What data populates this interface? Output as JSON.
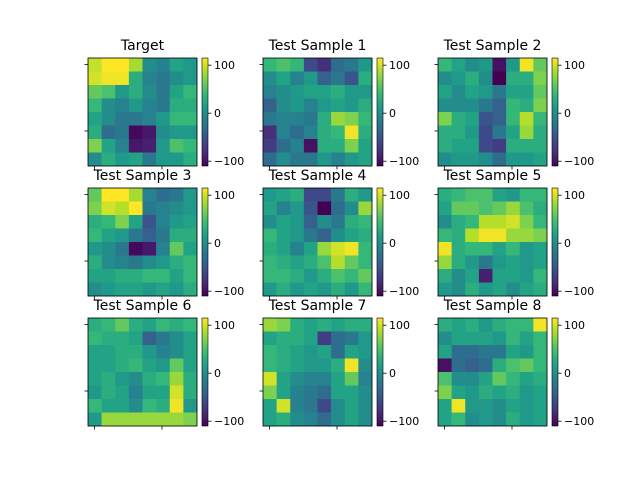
{
  "chart_data": [
    {
      "type": "heatmap",
      "title": "Target",
      "colorbar_ticks": [
        "100",
        "0",
        "−100"
      ],
      "vlim": [
        -110,
        115
      ],
      "colormap": "viridis",
      "values": [
        [
          95,
          115,
          115,
          85,
          0,
          -10,
          20,
          10
        ],
        [
          100,
          110,
          110,
          30,
          -10,
          -20,
          0,
          10
        ],
        [
          60,
          50,
          10,
          30,
          0,
          -20,
          20,
          40
        ],
        [
          40,
          0,
          -10,
          10,
          -10,
          -20,
          30,
          30
        ],
        [
          20,
          0,
          -20,
          -20,
          -10,
          10,
          40,
          40
        ],
        [
          30,
          -30,
          -20,
          -105,
          -95,
          0,
          10,
          10
        ],
        [
          70,
          20,
          -10,
          -95,
          -90,
          10,
          50,
          40
        ],
        [
          0,
          30,
          10,
          20,
          -20,
          10,
          10,
          30
        ]
      ]
    },
    {
      "type": "heatmap",
      "title": "Test Sample 1",
      "colorbar_ticks": [
        "100",
        "0",
        "−100"
      ],
      "vlim": [
        -110,
        115
      ],
      "colormap": "viridis",
      "values": [
        [
          40,
          50,
          40,
          -60,
          -80,
          -30,
          -20,
          10
        ],
        [
          0,
          20,
          -10,
          10,
          -40,
          -20,
          -50,
          30
        ],
        [
          -10,
          0,
          10,
          20,
          20,
          30,
          10,
          10
        ],
        [
          -40,
          0,
          10,
          -10,
          10,
          20,
          10,
          30
        ],
        [
          -20,
          -10,
          -10,
          -20,
          30,
          80,
          70,
          40
        ],
        [
          -80,
          -10,
          -30,
          -10,
          30,
          40,
          110,
          30
        ],
        [
          -70,
          -30,
          -10,
          -100,
          30,
          30,
          70,
          20
        ],
        [
          -30,
          0,
          -20,
          -20,
          10,
          -10,
          10,
          20
        ]
      ]
    },
    {
      "type": "heatmap",
      "title": "Test Sample 2",
      "colorbar_ticks": [
        "100",
        "0",
        "−100"
      ],
      "vlim": [
        -110,
        115
      ],
      "colormap": "viridis",
      "values": [
        [
          40,
          20,
          0,
          10,
          -100,
          10,
          110,
          60
        ],
        [
          0,
          10,
          30,
          0,
          -110,
          30,
          30,
          70
        ],
        [
          20,
          0,
          20,
          10,
          -20,
          20,
          20,
          60
        ],
        [
          0,
          0,
          0,
          -20,
          -40,
          40,
          30,
          70
        ],
        [
          70,
          30,
          20,
          -50,
          -40,
          40,
          90,
          40
        ],
        [
          30,
          30,
          10,
          -60,
          -20,
          20,
          80,
          30
        ],
        [
          30,
          20,
          20,
          -60,
          -70,
          30,
          30,
          30
        ],
        [
          0,
          10,
          10,
          0,
          -30,
          10,
          10,
          20
        ]
      ]
    },
    {
      "type": "heatmap",
      "title": "Test Sample 3",
      "colorbar_ticks": [
        "100",
        "0",
        "−100"
      ],
      "vlim": [
        -110,
        115
      ],
      "colormap": "viridis",
      "values": [
        [
          60,
          115,
          115,
          85,
          -10,
          -30,
          -20,
          10
        ],
        [
          70,
          100,
          90,
          115,
          -20,
          -10,
          0,
          10
        ],
        [
          30,
          40,
          70,
          20,
          -50,
          -10,
          10,
          20
        ],
        [
          40,
          20,
          10,
          -20,
          -40,
          -20,
          30,
          30
        ],
        [
          10,
          0,
          -20,
          -105,
          -95,
          -10,
          60,
          20
        ],
        [
          30,
          0,
          -10,
          -20,
          0,
          10,
          30,
          40
        ],
        [
          20,
          20,
          30,
          30,
          40,
          40,
          20,
          40
        ],
        [
          0,
          10,
          20,
          20,
          10,
          20,
          10,
          30
        ]
      ]
    },
    {
      "type": "heatmap",
      "title": "Test Sample 4",
      "colorbar_ticks": [
        "100",
        "0",
        "−100"
      ],
      "vlim": [
        -110,
        115
      ],
      "colormap": "viridis",
      "values": [
        [
          10,
          20,
          30,
          -60,
          -60,
          -20,
          30,
          10
        ],
        [
          20,
          -10,
          10,
          -50,
          -110,
          -30,
          0,
          80
        ],
        [
          0,
          20,
          10,
          -40,
          0,
          -20,
          30,
          40
        ],
        [
          40,
          20,
          10,
          -20,
          -40,
          0,
          20,
          30
        ],
        [
          30,
          20,
          -10,
          20,
          80,
          100,
          110,
          40
        ],
        [
          40,
          30,
          20,
          30,
          50,
          90,
          60,
          40
        ],
        [
          40,
          40,
          30,
          10,
          30,
          50,
          40,
          60
        ],
        [
          10,
          30,
          10,
          20,
          10,
          30,
          10,
          40
        ]
      ]
    },
    {
      "type": "heatmap",
      "title": "Test Sample 5",
      "colorbar_ticks": [
        "100",
        "0",
        "−100"
      ],
      "vlim": [
        -110,
        115
      ],
      "colormap": "viridis",
      "values": [
        [
          30,
          40,
          50,
          50,
          20,
          10,
          40,
          40
        ],
        [
          20,
          60,
          60,
          50,
          60,
          80,
          50,
          30
        ],
        [
          0,
          30,
          40,
          90,
          90,
          100,
          70,
          40
        ],
        [
          40,
          30,
          90,
          110,
          110,
          80,
          80,
          70
        ],
        [
          110,
          30,
          40,
          40,
          20,
          40,
          10,
          20
        ],
        [
          80,
          30,
          10,
          -20,
          10,
          20,
          10,
          20
        ],
        [
          30,
          0,
          20,
          -90,
          20,
          20,
          10,
          40
        ],
        [
          10,
          0,
          30,
          10,
          20,
          0,
          20,
          30
        ]
      ]
    },
    {
      "type": "heatmap",
      "title": "Test Sample 6",
      "colorbar_ticks": [
        "100",
        "0",
        "−100"
      ],
      "vlim": [
        -110,
        115
      ],
      "colormap": "viridis",
      "values": [
        [
          30,
          40,
          60,
          30,
          20,
          40,
          30,
          40
        ],
        [
          40,
          30,
          30,
          20,
          -40,
          -20,
          0,
          20
        ],
        [
          20,
          20,
          30,
          30,
          10,
          -10,
          0,
          20
        ],
        [
          20,
          20,
          30,
          40,
          20,
          10,
          60,
          20
        ],
        [
          20,
          30,
          10,
          0,
          30,
          40,
          80,
          30
        ],
        [
          10,
          30,
          20,
          -10,
          20,
          20,
          100,
          30
        ],
        [
          40,
          20,
          20,
          0,
          40,
          30,
          110,
          10
        ],
        [
          10,
          80,
          80,
          80,
          80,
          80,
          80,
          70
        ]
      ]
    },
    {
      "type": "heatmap",
      "title": "Test Sample 7",
      "colorbar_ticks": [
        "100",
        "0",
        "−100"
      ],
      "vlim": [
        -110,
        115
      ],
      "colormap": "viridis",
      "values": [
        [
          80,
          70,
          30,
          20,
          30,
          20,
          30,
          30
        ],
        [
          20,
          30,
          30,
          20,
          -70,
          -30,
          -20,
          10
        ],
        [
          40,
          30,
          20,
          10,
          20,
          -30,
          20,
          10
        ],
        [
          40,
          30,
          20,
          10,
          10,
          30,
          110,
          0
        ],
        [
          100,
          20,
          0,
          -10,
          -10,
          20,
          60,
          -10
        ],
        [
          70,
          20,
          -10,
          -20,
          -30,
          20,
          20,
          0
        ],
        [
          20,
          100,
          -10,
          -20,
          -60,
          0,
          20,
          0
        ],
        [
          20,
          30,
          0,
          -10,
          -30,
          0,
          20,
          0
        ]
      ]
    },
    {
      "type": "heatmap",
      "title": "Test Sample 8",
      "colorbar_ticks": [
        "100",
        "0",
        "−100"
      ],
      "vlim": [
        -110,
        115
      ],
      "colormap": "viridis",
      "values": [
        [
          30,
          20,
          30,
          10,
          30,
          40,
          40,
          110
        ],
        [
          0,
          20,
          20,
          20,
          10,
          40,
          20,
          40
        ],
        [
          20,
          -30,
          -30,
          -20,
          -20,
          20,
          10,
          40
        ],
        [
          -100,
          -30,
          -40,
          -30,
          30,
          50,
          60,
          40
        ],
        [
          50,
          0,
          0,
          20,
          60,
          40,
          20,
          30
        ],
        [
          70,
          20,
          10,
          30,
          20,
          30,
          10,
          20
        ],
        [
          20,
          110,
          10,
          10,
          0,
          20,
          10,
          20
        ],
        [
          20,
          40,
          0,
          10,
          0,
          30,
          10,
          20
        ]
      ]
    }
  ]
}
